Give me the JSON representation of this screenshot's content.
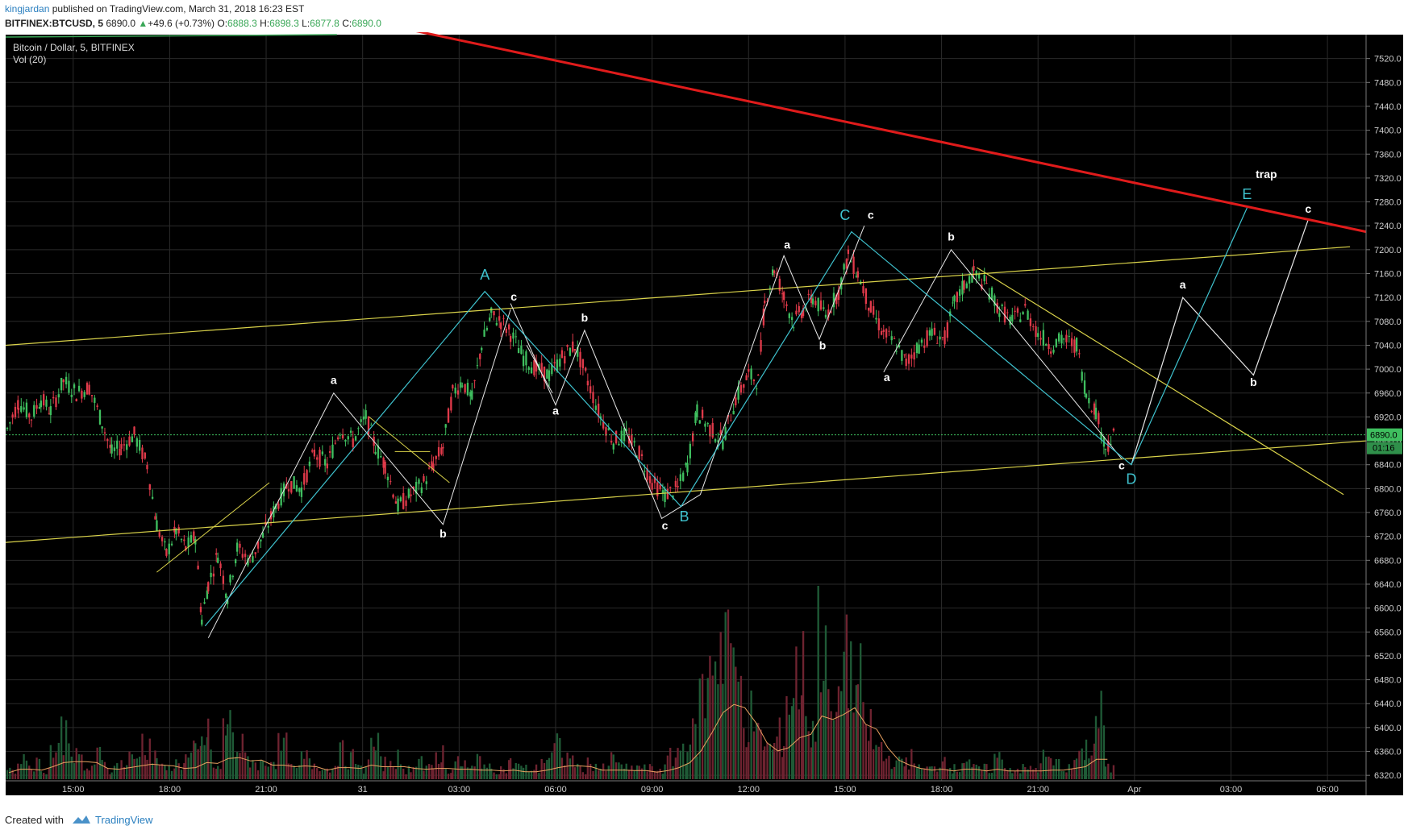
{
  "header": {
    "author": "kingjardan",
    "published": "published on TradingView.com, March 31, 2018 16:23 EST",
    "symbol": "BITFINEX:BTCUSD, 5",
    "last": "6890.0",
    "change": "+49.6 (+0.73%)",
    "open_label": "O:",
    "open": "6888.3",
    "high_label": "H:",
    "high": "6898.3",
    "low_label": "L:",
    "low": "6877.8",
    "close_label": "C:",
    "close": "6890.0"
  },
  "legend": {
    "title": "Bitcoin / Dollar, 5, BITFINEX",
    "vol": "Vol (20)"
  },
  "footer": {
    "created": "Created with",
    "brand": "TradingView"
  },
  "colors": {
    "background": "#000000",
    "grid": "#2a2a2a",
    "up": "#3fbf5f",
    "down": "#e03a4a",
    "trend_red": "#e01b1b",
    "channel_yellow": "#d9d24a",
    "wave_cyan": "#3fc3cf",
    "wave_white": "#e8e8e8"
  },
  "chart_data": {
    "type": "candlestick",
    "symbol": "BTCUSD",
    "exchange": "BITFINEX",
    "interval": "5",
    "ylim": [
      6300,
      7560
    ],
    "yticks": [
      6320,
      6360,
      6400,
      6440,
      6480,
      6520,
      6560,
      6600,
      6640,
      6680,
      6720,
      6760,
      6800,
      6840,
      6880,
      6920,
      6960,
      7000,
      7040,
      7080,
      7120,
      7160,
      7200,
      7240,
      7280,
      7320,
      7360,
      7400,
      7440,
      7480,
      7520
    ],
    "xticks": [
      {
        "label": "15:00",
        "h": 15
      },
      {
        "label": "18:00",
        "h": 18
      },
      {
        "label": "21:00",
        "h": 21
      },
      {
        "label": "31",
        "h": 24
      },
      {
        "label": "03:00",
        "h": 27
      },
      {
        "label": "06:00",
        "h": 30
      },
      {
        "label": "09:00",
        "h": 33
      },
      {
        "label": "12:00",
        "h": 36
      },
      {
        "label": "15:00",
        "h": 39
      },
      {
        "label": "18:00",
        "h": 42
      },
      {
        "label": "21:00",
        "h": 45
      },
      {
        "label": "Apr",
        "h": 48
      },
      {
        "label": "03:00",
        "h": 51
      },
      {
        "label": "06:00",
        "h": 54
      }
    ],
    "xlim_hours": [
      12.9,
      55.2
    ],
    "last_price": "6890.0",
    "countdown": "01:16",
    "price_path": [
      [
        12.95,
        6900
      ],
      [
        13.3,
        6945
      ],
      [
        13.7,
        6920
      ],
      [
        14.0,
        6950
      ],
      [
        14.3,
        6930
      ],
      [
        14.7,
        6980
      ],
      [
        15.1,
        6960
      ],
      [
        15.5,
        6970
      ],
      [
        15.9,
        6910
      ],
      [
        16.2,
        6860
      ],
      [
        16.5,
        6870
      ],
      [
        16.9,
        6890
      ],
      [
        17.3,
        6840
      ],
      [
        17.6,
        6740
      ],
      [
        17.9,
        6690
      ],
      [
        18.2,
        6730
      ],
      [
        18.5,
        6700
      ],
      [
        18.8,
        6720
      ],
      [
        19.0,
        6580
      ],
      [
        19.2,
        6640
      ],
      [
        19.5,
        6690
      ],
      [
        19.8,
        6620
      ],
      [
        20.1,
        6700
      ],
      [
        20.5,
        6680
      ],
      [
        20.9,
        6720
      ],
      [
        21.3,
        6770
      ],
      [
        21.7,
        6810
      ],
      [
        22.1,
        6800
      ],
      [
        22.5,
        6860
      ],
      [
        22.9,
        6840
      ],
      [
        23.3,
        6900
      ],
      [
        23.7,
        6880
      ],
      [
        24.1,
        6920
      ],
      [
        24.4,
        6870
      ],
      [
        24.7,
        6840
      ],
      [
        25.1,
        6770
      ],
      [
        25.5,
        6790
      ],
      [
        25.9,
        6810
      ],
      [
        26.2,
        6840
      ],
      [
        26.5,
        6870
      ],
      [
        26.8,
        6960
      ],
      [
        27.1,
        6980
      ],
      [
        27.4,
        6950
      ],
      [
        27.7,
        7040
      ],
      [
        28.0,
        7090
      ],
      [
        28.3,
        7080
      ],
      [
        28.6,
        7060
      ],
      [
        29.0,
        7020
      ],
      [
        29.4,
        7000
      ],
      [
        29.8,
        6990
      ],
      [
        30.2,
        7020
      ],
      [
        30.6,
        7040
      ],
      [
        31.0,
        6980
      ],
      [
        31.4,
        6920
      ],
      [
        31.8,
        6880
      ],
      [
        32.2,
        6890
      ],
      [
        32.6,
        6860
      ],
      [
        33.0,
        6810
      ],
      [
        33.4,
        6790
      ],
      [
        33.8,
        6800
      ],
      [
        34.1,
        6840
      ],
      [
        34.4,
        6930
      ],
      [
        34.8,
        6900
      ],
      [
        35.2,
        6880
      ],
      [
        35.6,
        6950
      ],
      [
        36.0,
        6990
      ],
      [
        36.3,
        6980
      ],
      [
        36.5,
        7110
      ],
      [
        36.8,
        7170
      ],
      [
        37.1,
        7120
      ],
      [
        37.4,
        7080
      ],
      [
        37.7,
        7100
      ],
      [
        38.0,
        7120
      ],
      [
        38.4,
        7090
      ],
      [
        38.8,
        7130
      ],
      [
        39.1,
        7190
      ],
      [
        39.4,
        7160
      ],
      [
        39.8,
        7100
      ],
      [
        40.2,
        7060
      ],
      [
        40.6,
        7040
      ],
      [
        40.9,
        7010
      ],
      [
        41.3,
        7040
      ],
      [
        41.7,
        7060
      ],
      [
        42.1,
        7050
      ],
      [
        42.4,
        7110
      ],
      [
        42.7,
        7140
      ],
      [
        43.0,
        7160
      ],
      [
        43.4,
        7140
      ],
      [
        43.8,
        7100
      ],
      [
        44.2,
        7080
      ],
      [
        44.6,
        7100
      ],
      [
        45.0,
        7060
      ],
      [
        45.4,
        7040
      ],
      [
        45.8,
        7050
      ],
      [
        46.2,
        7040
      ],
      [
        46.5,
        6960
      ],
      [
        46.8,
        6930
      ],
      [
        47.1,
        6870
      ],
      [
        47.4,
        6890
      ]
    ],
    "volume_heights": [
      1,
      2,
      1.5,
      1,
      3,
      4.5,
      2,
      1,
      2.5,
      1,
      1.5,
      2,
      3.5,
      2,
      1,
      1.5,
      2,
      2.5,
      4,
      1,
      5,
      3,
      2,
      1.5,
      2,
      3,
      1,
      2,
      1.5,
      1,
      2.5,
      2,
      1,
      3,
      1.5,
      2,
      1,
      2,
      1,
      2.5,
      1,
      1.5,
      1,
      2,
      1,
      1,
      1.5,
      1,
      1,
      2,
      3,
      2,
      1,
      1.5,
      1,
      2,
      1,
      1.2,
      1,
      1,
      2,
      3,
      4,
      8,
      13,
      15,
      9,
      6,
      4,
      3,
      4,
      8,
      10,
      5,
      15,
      6,
      13,
      9,
      5,
      3,
      2,
      1.5,
      2,
      1,
      1,
      2,
      1,
      2,
      1,
      1,
      2,
      1,
      1,
      1,
      2,
      1.5,
      1,
      2,
      3,
      6,
      1
    ],
    "volume_ma_label": "Vol (20)",
    "annotations": {
      "trendline_red": [
        [
          24.0,
          7585
        ],
        [
          55.2,
          7230
        ]
      ],
      "channel_upper": [
        [
          12.9,
          7040
        ],
        [
          54.7,
          7205
        ]
      ],
      "channel_lower": [
        [
          12.9,
          6710
        ],
        [
          55.2,
          6880
        ]
      ],
      "descending_yellow": [
        [
          43.1,
          7170
        ],
        [
          54.5,
          6790
        ]
      ],
      "small_yellow_1": [
        [
          17.6,
          6660
        ],
        [
          21.1,
          6810
        ]
      ],
      "small_yellow_2": [
        [
          25.0,
          6862
        ],
        [
          26.1,
          6862
        ]
      ],
      "small_yellow_3": [
        [
          24.2,
          6920
        ],
        [
          26.7,
          6810
        ]
      ],
      "wave_cyan_main": [
        [
          19.1,
          6570
        ],
        [
          27.8,
          7130
        ],
        [
          33.9,
          6770
        ],
        [
          39.2,
          7230
        ],
        [
          47.9,
          6840
        ],
        [
          51.5,
          7270
        ]
      ],
      "wave_white_1": [
        [
          19.2,
          6550
        ],
        [
          23.1,
          6960
        ],
        [
          26.5,
          6740
        ],
        [
          28.6,
          7100
        ]
      ],
      "wave_white_2": [
        [
          28.6,
          7110
        ],
        [
          30.0,
          6940
        ],
        [
          30.9,
          7065
        ],
        [
          33.3,
          6750
        ],
        [
          34.5,
          6790
        ],
        [
          37.1,
          7190
        ],
        [
          38.2,
          7050
        ],
        [
          39.6,
          7240
        ]
      ],
      "wave_white_3": [
        [
          40.2,
          6995
        ],
        [
          42.3,
          7200
        ],
        [
          47.6,
          6850
        ]
      ],
      "wave_white_proj": [
        [
          47.9,
          6840
        ],
        [
          49.5,
          7120
        ],
        [
          51.7,
          6990
        ],
        [
          53.4,
          7250
        ]
      ],
      "wave_white_small_1": [
        [
          29.1,
          7040
        ],
        [
          29.9,
          6960
        ]
      ],
      "labels": [
        {
          "text": "A",
          "h": 27.8,
          "p": 7150,
          "color": "cyan"
        },
        {
          "text": "B",
          "h": 34.0,
          "p": 6745,
          "color": "cyan"
        },
        {
          "text": "C",
          "h": 39.0,
          "p": 7250,
          "color": "cyan"
        },
        {
          "text": "D",
          "h": 47.9,
          "p": 6808,
          "color": "cyan"
        },
        {
          "text": "E",
          "h": 51.5,
          "p": 7285,
          "color": "cyan"
        },
        {
          "text": "a",
          "h": 23.1,
          "p": 6975,
          "color": "white"
        },
        {
          "text": "b",
          "h": 26.5,
          "p": 6718,
          "color": "white"
        },
        {
          "text": "c",
          "h": 28.7,
          "p": 7115,
          "color": "white"
        },
        {
          "text": "a",
          "h": 30.0,
          "p": 6924,
          "color": "white"
        },
        {
          "text": "b",
          "h": 30.9,
          "p": 7080,
          "color": "white"
        },
        {
          "text": "c",
          "h": 33.4,
          "p": 6732,
          "color": "white"
        },
        {
          "text": "a",
          "h": 37.2,
          "p": 7202,
          "color": "white"
        },
        {
          "text": "b",
          "h": 38.3,
          "p": 7033,
          "color": "white"
        },
        {
          "text": "c",
          "h": 39.8,
          "p": 7252,
          "color": "white"
        },
        {
          "text": "a",
          "h": 40.3,
          "p": 6980,
          "color": "white"
        },
        {
          "text": "b",
          "h": 42.3,
          "p": 7215,
          "color": "white"
        },
        {
          "text": "c",
          "h": 47.6,
          "p": 6832,
          "color": "white"
        },
        {
          "text": "a",
          "h": 49.5,
          "p": 7135,
          "color": "white"
        },
        {
          "text": "b",
          "h": 51.7,
          "p": 6972,
          "color": "white"
        },
        {
          "text": "c",
          "h": 53.4,
          "p": 7262,
          "color": "white"
        },
        {
          "text": "trap",
          "h": 52.1,
          "p": 7320,
          "color": "white"
        }
      ]
    }
  }
}
